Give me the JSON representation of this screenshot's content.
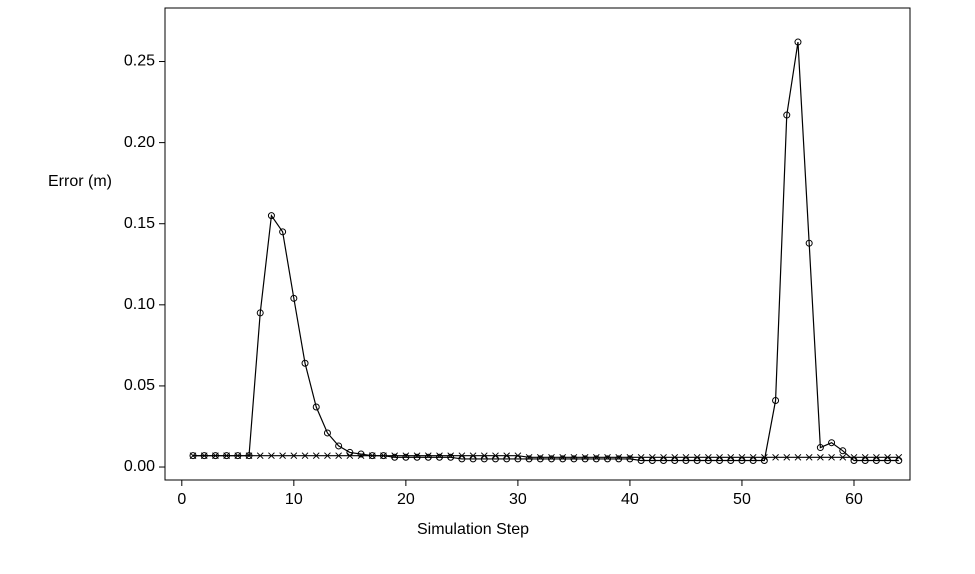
{
  "chart_data": {
    "type": "line",
    "xlabel": "Simulation Step",
    "ylabel": "Error (m)",
    "x": [
      1,
      2,
      3,
      4,
      5,
      6,
      7,
      8,
      9,
      10,
      11,
      12,
      13,
      14,
      15,
      16,
      17,
      18,
      19,
      20,
      21,
      22,
      23,
      24,
      25,
      26,
      27,
      28,
      29,
      30,
      31,
      32,
      33,
      34,
      35,
      36,
      37,
      38,
      39,
      40,
      41,
      42,
      43,
      44,
      45,
      46,
      47,
      48,
      49,
      50,
      51,
      52,
      53,
      54,
      55,
      56,
      57,
      58,
      59,
      60,
      61,
      62,
      63,
      64
    ],
    "series": [
      {
        "color": "#000000",
        "marker": "circle",
        "values": [
          0.007,
          0.007,
          0.007,
          0.007,
          0.007,
          0.007,
          0.095,
          0.155,
          0.145,
          0.104,
          0.064,
          0.037,
          0.021,
          0.013,
          0.009,
          0.008,
          0.007,
          0.007,
          0.006,
          0.006,
          0.006,
          0.006,
          0.006,
          0.006,
          0.005,
          0.005,
          0.005,
          0.005,
          0.005,
          0.005,
          0.005,
          0.005,
          0.005,
          0.005,
          0.005,
          0.005,
          0.005,
          0.005,
          0.005,
          0.005,
          0.004,
          0.004,
          0.004,
          0.004,
          0.004,
          0.004,
          0.004,
          0.004,
          0.004,
          0.004,
          0.004,
          0.004,
          0.041,
          0.217,
          0.262,
          0.138,
          0.012,
          0.015,
          0.01,
          0.004,
          0.004,
          0.004,
          0.004,
          0.004
        ]
      },
      {
        "color": "#000000",
        "marker": "x",
        "values": [
          0.007,
          0.007,
          0.007,
          0.007,
          0.007,
          0.007,
          0.007,
          0.007,
          0.007,
          0.007,
          0.007,
          0.007,
          0.007,
          0.007,
          0.007,
          0.007,
          0.007,
          0.007,
          0.007,
          0.007,
          0.007,
          0.007,
          0.007,
          0.007,
          0.007,
          0.007,
          0.007,
          0.007,
          0.007,
          0.007,
          0.006,
          0.006,
          0.006,
          0.006,
          0.006,
          0.006,
          0.006,
          0.006,
          0.006,
          0.006,
          0.006,
          0.006,
          0.006,
          0.006,
          0.006,
          0.006,
          0.006,
          0.006,
          0.006,
          0.006,
          0.006,
          0.006,
          0.006,
          0.006,
          0.006,
          0.006,
          0.006,
          0.006,
          0.006,
          0.006,
          0.006,
          0.006,
          0.006,
          0.006
        ]
      }
    ],
    "xlim": [
      -1.5,
      65
    ],
    "xticks": [
      0,
      10,
      20,
      30,
      40,
      50,
      60
    ],
    "ylim": [
      -0.008,
      0.283
    ],
    "yticks": [
      {
        "value": 0,
        "label": "0.00"
      },
      {
        "value": 0.05,
        "label": "0.05"
      },
      {
        "value": 0.1,
        "label": "0.10"
      },
      {
        "value": 0.15,
        "label": "0.15"
      },
      {
        "value": 0.2,
        "label": "0.20"
      },
      {
        "value": 0.25,
        "label": "0.25"
      }
    ]
  }
}
